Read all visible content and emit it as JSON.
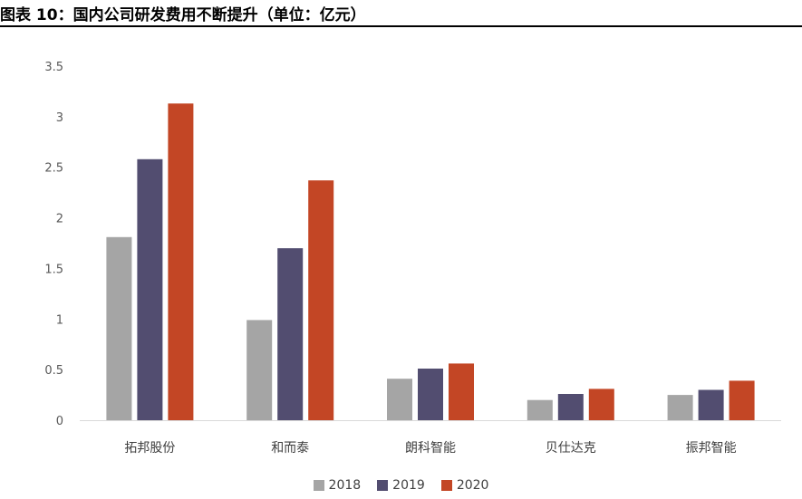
{
  "figure": {
    "title": "图表 10：国内公司研发费用不断提升（单位：亿元）"
  },
  "chart_data": {
    "type": "bar",
    "title": "",
    "xlabel": "",
    "ylabel": "",
    "categories": [
      "拓邦股份",
      "和而泰",
      "朗科智能",
      "贝仕达克",
      "振邦智能"
    ],
    "series": [
      {
        "name": "2018",
        "color": "#a5a5a5",
        "values": [
          1.81,
          0.99,
          0.41,
          0.2,
          0.25
        ]
      },
      {
        "name": "2019",
        "color": "#524d70",
        "values": [
          2.58,
          1.7,
          0.51,
          0.26,
          0.3
        ]
      },
      {
        "name": "2020",
        "color": "#c34625",
        "values": [
          3.13,
          2.37,
          0.56,
          0.31,
          0.39
        ]
      }
    ],
    "ylim": [
      0,
      3.5
    ],
    "yticks": [
      0,
      0.5,
      1,
      1.5,
      2,
      2.5,
      3,
      3.5
    ],
    "ytick_labels": [
      "0",
      "0.5",
      "1",
      "1.5",
      "2",
      "2.5",
      "3",
      "3.5"
    ],
    "grid": false,
    "legend_position": "bottom"
  }
}
